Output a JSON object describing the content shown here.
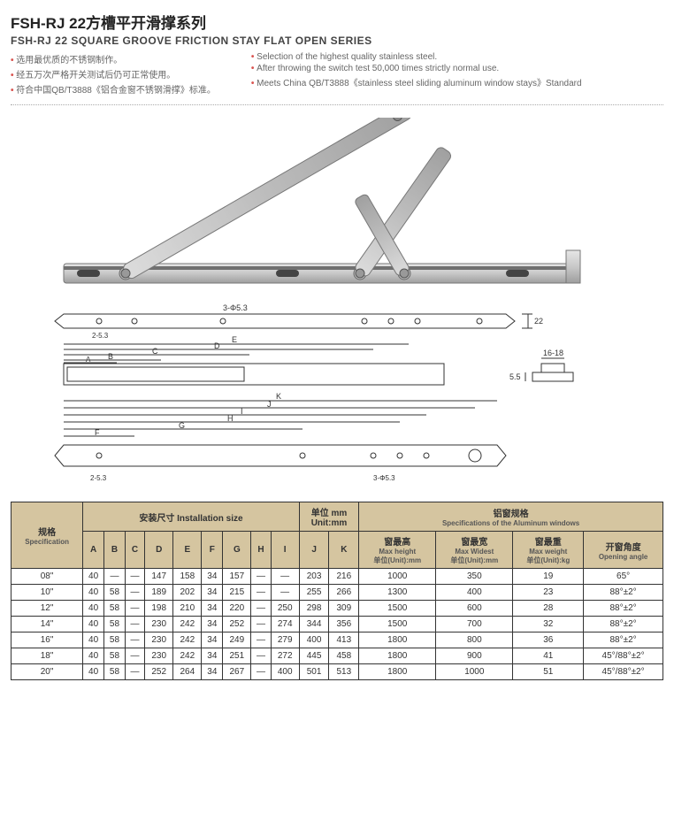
{
  "title_cn": "FSH-RJ 22方槽平开滑撑系列",
  "title_en": "FSH-RJ 22 SQUARE GROOVE FRICTION STAY FLAT OPEN SERIES",
  "bullets_left": [
    "选用最优质的不锈钢制作。",
    "经五万次严格开关测试后仍可正常使用。",
    "符合中国QB/T3888《铝合金窗不锈钢滑撑》标准。"
  ],
  "bullets_right": [
    "Selection of the highest quality stainless steel.",
    "After throwing the switch test 50,000 times strictly normal use.",
    "Meets China QB/T3888《stainless steel sliding aluminum window stays》Standard"
  ],
  "diagram_labels": {
    "top_dim_1": "3-Φ5.3",
    "top_dim_2": "22",
    "top_dim_3": "2-5.3",
    "dims": [
      "A",
      "B",
      "C",
      "D",
      "E",
      "F",
      "G",
      "H",
      "I",
      "J",
      "K"
    ],
    "side_h": "5.5",
    "side_w": "16-18",
    "bottom_dim": "3-Φ5.3"
  },
  "table": {
    "header_install_cn": "安装尺寸 Installation size",
    "header_unit": "单位 mm\nUnit:mm",
    "header_alum_cn": "铝窗规格",
    "header_alum_en": "Specifications of the Aluminum windows",
    "col_spec_cn": "规格",
    "col_spec_en": "Specification",
    "cols_dim": [
      "A",
      "B",
      "C",
      "D",
      "E",
      "F",
      "G",
      "H",
      "I",
      "J",
      "K"
    ],
    "col_maxh_cn": "窗最高",
    "col_maxh_en": "Max height",
    "col_maxh_unit": "单位(Unit):mm",
    "col_maxw_cn": "窗最宽",
    "col_maxw_en": "Max Widest",
    "col_maxw_unit": "单位(Unit):mm",
    "col_maxwt_cn": "窗最重",
    "col_maxwt_en": "Max weight",
    "col_maxwt_unit": "单位(Unit):kg",
    "col_angle_cn": "开窗角度",
    "col_angle_en": "Opening angle",
    "rows": [
      {
        "spec": "08\"",
        "A": "40",
        "B": "—",
        "C": "—",
        "D": "147",
        "E": "158",
        "F": "34",
        "G": "157",
        "H": "—",
        "I": "—",
        "J": "203",
        "K": "216",
        "mh": "1000",
        "mw": "350",
        "mwt": "19",
        "ang": "65°"
      },
      {
        "spec": "10\"",
        "A": "40",
        "B": "58",
        "C": "—",
        "D": "189",
        "E": "202",
        "F": "34",
        "G": "215",
        "H": "—",
        "I": "—",
        "J": "255",
        "K": "266",
        "mh": "1300",
        "mw": "400",
        "mwt": "23",
        "ang": "88°±2°"
      },
      {
        "spec": "12\"",
        "A": "40",
        "B": "58",
        "C": "—",
        "D": "198",
        "E": "210",
        "F": "34",
        "G": "220",
        "H": "—",
        "I": "250",
        "J": "298",
        "K": "309",
        "mh": "1500",
        "mw": "600",
        "mwt": "28",
        "ang": "88°±2°"
      },
      {
        "spec": "14\"",
        "A": "40",
        "B": "58",
        "C": "—",
        "D": "230",
        "E": "242",
        "F": "34",
        "G": "252",
        "H": "—",
        "I": "274",
        "J": "344",
        "K": "356",
        "mh": "1500",
        "mw": "700",
        "mwt": "32",
        "ang": "88°±2°"
      },
      {
        "spec": "16\"",
        "A": "40",
        "B": "58",
        "C": "—",
        "D": "230",
        "E": "242",
        "F": "34",
        "G": "249",
        "H": "—",
        "I": "279",
        "J": "400",
        "K": "413",
        "mh": "1800",
        "mw": "800",
        "mwt": "36",
        "ang": "88°±2°"
      },
      {
        "spec": "18\"",
        "A": "40",
        "B": "58",
        "C": "—",
        "D": "230",
        "E": "242",
        "F": "34",
        "G": "251",
        "H": "—",
        "I": "272",
        "J": "445",
        "K": "458",
        "mh": "1800",
        "mw": "900",
        "mwt": "41",
        "ang": "45°/88°±2°"
      },
      {
        "spec": "20\"",
        "A": "40",
        "B": "58",
        "C": "—",
        "D": "252",
        "E": "264",
        "F": "34",
        "G": "267",
        "H": "—",
        "I": "400",
        "J": "501",
        "K": "513",
        "mh": "1800",
        "mw": "1000",
        "mwt": "51",
        "ang": "45°/88°±2°"
      }
    ]
  },
  "colors": {
    "accent": "#d9534f",
    "header_bg": "#d5c5a0",
    "metal_light": "#d8d8d8",
    "metal_mid": "#bcbcbc",
    "metal_dark": "#8a8a8a",
    "line": "#333333"
  }
}
